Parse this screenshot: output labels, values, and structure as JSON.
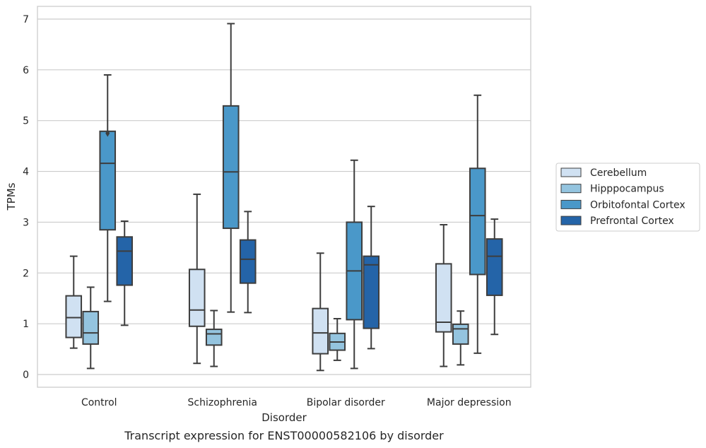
{
  "chart_data": {
    "type": "box",
    "xlabel": "Disorder",
    "ylabel": "TPMs",
    "caption": "Transcript expression for ENST00000582106 by disorder",
    "ylim": [
      -0.25,
      7.25
    ],
    "yticks": [
      "0",
      "1",
      "2",
      "3",
      "4",
      "5",
      "6",
      "7"
    ],
    "grid": "horizontal",
    "legend_position": "right",
    "categories": [
      "Control",
      "Schizophrenia",
      "Bipolar disorder",
      "Major depression"
    ],
    "series": [
      {
        "name": "Cerebellum",
        "color": "#d0e1f2",
        "boxes": [
          {
            "whislo": 0.52,
            "q1": 0.73,
            "med": 1.12,
            "q3": 1.55,
            "whishi": 2.33,
            "fliers": []
          },
          {
            "whislo": 0.22,
            "q1": 0.95,
            "med": 1.27,
            "q3": 2.07,
            "whishi": 3.55,
            "fliers": []
          },
          {
            "whislo": 0.08,
            "q1": 0.41,
            "med": 0.82,
            "q3": 1.3,
            "whishi": 2.39,
            "fliers": []
          },
          {
            "whislo": 0.16,
            "q1": 0.84,
            "med": 1.03,
            "q3": 2.18,
            "whishi": 2.95,
            "fliers": []
          }
        ]
      },
      {
        "name": "Hipppocampus",
        "color": "#94c4df",
        "boxes": [
          {
            "whislo": 0.12,
            "q1": 0.6,
            "med": 0.82,
            "q3": 1.24,
            "whishi": 1.72,
            "fliers": []
          },
          {
            "whislo": 0.16,
            "q1": 0.58,
            "med": 0.8,
            "q3": 0.89,
            "whishi": 1.26,
            "fliers": []
          },
          {
            "whislo": 0.28,
            "q1": 0.48,
            "med": 0.64,
            "q3": 0.81,
            "whishi": 1.1,
            "fliers": []
          },
          {
            "whislo": 0.19,
            "q1": 0.6,
            "med": 0.9,
            "q3": 0.99,
            "whishi": 1.25,
            "fliers": []
          }
        ]
      },
      {
        "name": "Orbitofontal Cortex",
        "color": "#4a98c9",
        "boxes": [
          {
            "whislo": 1.44,
            "q1": 2.85,
            "med": 4.16,
            "q3": 4.79,
            "whishi": 5.9,
            "fliers": [
              4.75
            ]
          },
          {
            "whislo": 1.23,
            "q1": 2.88,
            "med": 3.99,
            "q3": 5.29,
            "whishi": 6.91,
            "fliers": []
          },
          {
            "whislo": 0.12,
            "q1": 1.08,
            "med": 2.04,
            "q3": 3.0,
            "whishi": 4.22,
            "fliers": []
          },
          {
            "whislo": 0.42,
            "q1": 1.97,
            "med": 3.13,
            "q3": 4.06,
            "whishi": 5.5,
            "fliers": []
          }
        ]
      },
      {
        "name": "Prefrontal Cortex",
        "color": "#2464a8",
        "boxes": [
          {
            "whislo": 0.97,
            "q1": 1.76,
            "med": 2.43,
            "q3": 2.71,
            "whishi": 3.02,
            "fliers": []
          },
          {
            "whislo": 1.22,
            "q1": 1.8,
            "med": 2.27,
            "q3": 2.65,
            "whishi": 3.21,
            "fliers": []
          },
          {
            "whislo": 0.51,
            "q1": 0.91,
            "med": 2.16,
            "q3": 2.33,
            "whishi": 3.31,
            "fliers": []
          },
          {
            "whislo": 0.79,
            "q1": 1.56,
            "med": 2.33,
            "q3": 2.67,
            "whishi": 3.06,
            "fliers": []
          }
        ]
      }
    ]
  }
}
